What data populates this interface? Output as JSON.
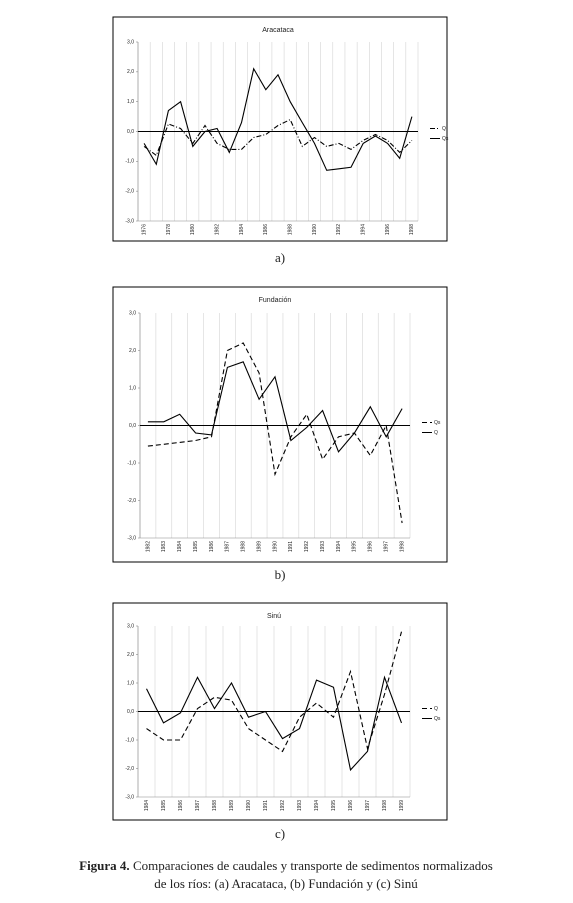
{
  "chart_data": [
    {
      "type": "line",
      "title": "Aracataca",
      "panel_label": "a)",
      "categories": [
        "1976",
        null,
        "1978",
        null,
        "1980",
        null,
        "1982",
        null,
        "1984",
        null,
        "1986",
        null,
        "1988",
        null,
        "1990",
        null,
        "1992",
        null,
        "1994",
        null,
        "1996",
        null,
        "1998"
      ],
      "series": [
        {
          "name": "Q",
          "color": "#000000",
          "line_style": "dash-dot",
          "values": [
            -0.5,
            -0.8,
            0.25,
            0.1,
            -0.4,
            0.2,
            -0.4,
            -0.6,
            -0.6,
            -0.2,
            -0.1,
            0.2,
            0.4,
            -0.5,
            -0.2,
            -0.5,
            -0.4,
            -0.6,
            -0.3,
            -0.1,
            -0.3,
            -0.7,
            -0.3
          ]
        },
        {
          "name": "Qs",
          "color": "#000000",
          "line_style": "solid",
          "values": [
            -0.4,
            -1.1,
            0.7,
            1.0,
            -0.5,
            0.0,
            0.1,
            -0.7,
            0.3,
            2.1,
            1.4,
            1.9,
            1.0,
            0.3,
            -0.4,
            -1.3,
            -1.25,
            -1.2,
            -0.4,
            -0.15,
            -0.4,
            -0.9,
            0.5
          ]
        }
      ],
      "ylim": [
        -3,
        3
      ],
      "yticks": [
        {
          "value": 3,
          "label": "3,0"
        },
        {
          "value": 2,
          "label": "2,0"
        },
        {
          "value": 1,
          "label": "1,0"
        },
        {
          "value": 0,
          "label": "0,0"
        },
        {
          "value": -1,
          "label": "-1,0"
        },
        {
          "value": -2,
          "label": "-2,0"
        },
        {
          "value": -3,
          "label": "-3,0"
        }
      ],
      "grid": "x",
      "zero_line": true,
      "legend": "right"
    },
    {
      "type": "line",
      "title": "Fundación",
      "panel_label": "b)",
      "categories": [
        "1982",
        "1983",
        "1984",
        "1985",
        "1986",
        "1987",
        "1988",
        "1989",
        "1990",
        "1991",
        "1992",
        "1993",
        "1994",
        "1995",
        "1996",
        "1997",
        "1998"
      ],
      "series": [
        {
          "name": "Qs",
          "color": "#000000",
          "line_style": "dash",
          "values": [
            -0.55,
            -0.5,
            -0.45,
            -0.4,
            -0.3,
            2.0,
            2.2,
            1.4,
            -1.3,
            -0.3,
            0.3,
            -0.9,
            -0.3,
            -0.2,
            -0.8,
            0.0,
            -2.6
          ]
        },
        {
          "name": "Q",
          "color": "#000000",
          "line_style": "solid",
          "values": [
            0.1,
            0.1,
            0.3,
            -0.2,
            -0.25,
            1.55,
            1.7,
            0.7,
            1.3,
            -0.4,
            -0.05,
            0.4,
            -0.7,
            -0.2,
            0.5,
            -0.3,
            0.45
          ]
        }
      ],
      "ylim": [
        -3,
        3
      ],
      "yticks": [
        {
          "value": 3,
          "label": "3,0"
        },
        {
          "value": 2,
          "label": "2,0"
        },
        {
          "value": 1,
          "label": "1,0"
        },
        {
          "value": 0,
          "label": "0,0"
        },
        {
          "value": -1,
          "label": "-1,0"
        },
        {
          "value": -2,
          "label": "-2,0"
        },
        {
          "value": -3,
          "label": "-3,0"
        }
      ],
      "grid": "x",
      "zero_line": true,
      "legend": "right"
    },
    {
      "type": "line",
      "title": "Sinú",
      "panel_label": "c)",
      "categories": [
        "1984",
        "1985",
        "1986",
        "1987",
        "1988",
        "1989",
        "1990",
        "1991",
        "1992",
        "1993",
        "1994",
        "1995",
        "1996",
        "1997",
        "1998",
        "1999"
      ],
      "series": [
        {
          "name": "Q",
          "color": "#000000",
          "line_style": "dash",
          "values": [
            -0.6,
            -1.0,
            -1.0,
            0.1,
            0.5,
            0.4,
            -0.6,
            -1.0,
            -1.4,
            -0.2,
            0.3,
            -0.2,
            1.4,
            -1.3,
            0.6,
            2.8
          ]
        },
        {
          "name": "Qs",
          "color": "#000000",
          "line_style": "solid",
          "values": [
            0.8,
            -0.4,
            -0.05,
            1.2,
            0.1,
            1.0,
            -0.2,
            0.0,
            -0.95,
            -0.6,
            1.1,
            0.85,
            -2.05,
            -1.4,
            1.2,
            -0.4
          ]
        }
      ],
      "ylim": [
        -3,
        3
      ],
      "yticks": [
        {
          "value": 3,
          "label": "3,0"
        },
        {
          "value": 2,
          "label": "2,0"
        },
        {
          "value": 1,
          "label": "1,0"
        },
        {
          "value": 0,
          "label": "0,0"
        },
        {
          "value": -1,
          "label": "-1,0"
        },
        {
          "value": -2,
          "label": "-2,0"
        },
        {
          "value": -3,
          "label": "-3,0"
        }
      ],
      "grid": "x",
      "zero_line": true,
      "legend": "right"
    }
  ],
  "caption": {
    "label": "Figura 4.",
    "line1": "Comparaciones de caudales y transporte de sedimentos normalizados",
    "line2": "de los ríos: (a) Aracataca, (b) Fundación y (c) Sinú"
  }
}
